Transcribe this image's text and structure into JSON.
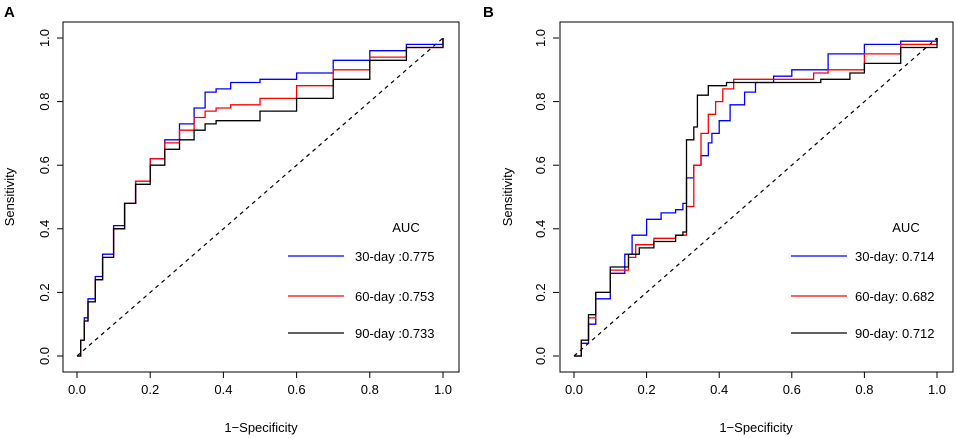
{
  "chart_data": [
    {
      "panel": "A",
      "type": "line",
      "xlabel": "1−Specificity",
      "ylabel": "Sensitivity",
      "xlim": [
        0,
        1
      ],
      "ylim": [
        0,
        1
      ],
      "xticks": [
        "0.0",
        "0.2",
        "0.4",
        "0.6",
        "0.8",
        "1.0"
      ],
      "yticks": [
        "0.0",
        "0.2",
        "0.4",
        "0.6",
        "0.8",
        "1.0"
      ],
      "legend_title": "AUC",
      "legend_position": "bottom-right",
      "reference_line": "diagonal-dashed",
      "series": [
        {
          "name": "30-day",
          "label": "30-day :0.775",
          "color": "#0000ff",
          "points": [
            [
              0,
              0
            ],
            [
              0.01,
              0.05
            ],
            [
              0.02,
              0.12
            ],
            [
              0.03,
              0.18
            ],
            [
              0.05,
              0.25
            ],
            [
              0.07,
              0.32
            ],
            [
              0.1,
              0.41
            ],
            [
              0.13,
              0.48
            ],
            [
              0.16,
              0.55
            ],
            [
              0.2,
              0.62
            ],
            [
              0.24,
              0.68
            ],
            [
              0.28,
              0.73
            ],
            [
              0.32,
              0.78
            ],
            [
              0.35,
              0.83
            ],
            [
              0.38,
              0.84
            ],
            [
              0.42,
              0.86
            ],
            [
              0.5,
              0.87
            ],
            [
              0.6,
              0.89
            ],
            [
              0.7,
              0.93
            ],
            [
              0.8,
              0.96
            ],
            [
              0.9,
              0.98
            ],
            [
              1,
              1
            ]
          ]
        },
        {
          "name": "60-day",
          "label": "60-day :0.753",
          "color": "#ff0000",
          "points": [
            [
              0,
              0
            ],
            [
              0.01,
              0.05
            ],
            [
              0.02,
              0.11
            ],
            [
              0.03,
              0.17
            ],
            [
              0.05,
              0.24
            ],
            [
              0.07,
              0.31
            ],
            [
              0.1,
              0.4
            ],
            [
              0.13,
              0.48
            ],
            [
              0.16,
              0.55
            ],
            [
              0.2,
              0.62
            ],
            [
              0.24,
              0.67
            ],
            [
              0.28,
              0.71
            ],
            [
              0.32,
              0.75
            ],
            [
              0.35,
              0.77
            ],
            [
              0.38,
              0.78
            ],
            [
              0.42,
              0.79
            ],
            [
              0.5,
              0.81
            ],
            [
              0.6,
              0.85
            ],
            [
              0.7,
              0.9
            ],
            [
              0.8,
              0.94
            ],
            [
              0.9,
              0.97
            ],
            [
              1,
              1
            ]
          ]
        },
        {
          "name": "90-day",
          "label": "90-day :0.733",
          "color": "#000000",
          "points": [
            [
              0,
              0
            ],
            [
              0.01,
              0.05
            ],
            [
              0.02,
              0.11
            ],
            [
              0.03,
              0.17
            ],
            [
              0.05,
              0.24
            ],
            [
              0.07,
              0.31
            ],
            [
              0.1,
              0.4
            ],
            [
              0.13,
              0.48
            ],
            [
              0.16,
              0.54
            ],
            [
              0.2,
              0.6
            ],
            [
              0.24,
              0.65
            ],
            [
              0.28,
              0.68
            ],
            [
              0.32,
              0.71
            ],
            [
              0.35,
              0.73
            ],
            [
              0.38,
              0.74
            ],
            [
              0.42,
              0.74
            ],
            [
              0.5,
              0.77
            ],
            [
              0.6,
              0.81
            ],
            [
              0.7,
              0.87
            ],
            [
              0.8,
              0.93
            ],
            [
              0.9,
              0.97
            ],
            [
              1,
              1
            ]
          ]
        }
      ]
    },
    {
      "panel": "B",
      "type": "line",
      "xlabel": "1−Specificity",
      "ylabel": "Sensitivity",
      "xlim": [
        0,
        1
      ],
      "ylim": [
        0,
        1
      ],
      "xticks": [
        "0.0",
        "0.2",
        "0.4",
        "0.6",
        "0.8",
        "1.0"
      ],
      "yticks": [
        "0.0",
        "0.2",
        "0.4",
        "0.6",
        "0.8",
        "1.0"
      ],
      "legend_title": "AUC",
      "legend_position": "bottom-right",
      "reference_line": "diagonal-dashed",
      "series": [
        {
          "name": "30-day",
          "label": "30-day:  0.714",
          "color": "#0000ff",
          "points": [
            [
              0,
              0
            ],
            [
              0.02,
              0.04
            ],
            [
              0.04,
              0.1
            ],
            [
              0.06,
              0.18
            ],
            [
              0.1,
              0.26
            ],
            [
              0.14,
              0.32
            ],
            [
              0.16,
              0.38
            ],
            [
              0.2,
              0.43
            ],
            [
              0.24,
              0.45
            ],
            [
              0.28,
              0.46
            ],
            [
              0.3,
              0.48
            ],
            [
              0.31,
              0.56
            ],
            [
              0.33,
              0.6
            ],
            [
              0.35,
              0.63
            ],
            [
              0.37,
              0.67
            ],
            [
              0.38,
              0.7
            ],
            [
              0.4,
              0.74
            ],
            [
              0.43,
              0.79
            ],
            [
              0.47,
              0.83
            ],
            [
              0.5,
              0.86
            ],
            [
              0.55,
              0.88
            ],
            [
              0.6,
              0.9
            ],
            [
              0.7,
              0.95
            ],
            [
              0.8,
              0.98
            ],
            [
              0.9,
              0.99
            ],
            [
              1,
              1
            ]
          ]
        },
        {
          "name": "60-day",
          "label": "60-day:  0.682",
          "color": "#ff0000",
          "points": [
            [
              0,
              0
            ],
            [
              0.02,
              0.05
            ],
            [
              0.04,
              0.12
            ],
            [
              0.06,
              0.2
            ],
            [
              0.1,
              0.27
            ],
            [
              0.15,
              0.31
            ],
            [
              0.17,
              0.35
            ],
            [
              0.22,
              0.37
            ],
            [
              0.28,
              0.38
            ],
            [
              0.3,
              0.38
            ],
            [
              0.31,
              0.47
            ],
            [
              0.33,
              0.6
            ],
            [
              0.35,
              0.7
            ],
            [
              0.37,
              0.76
            ],
            [
              0.39,
              0.8
            ],
            [
              0.41,
              0.84
            ],
            [
              0.44,
              0.87
            ],
            [
              0.5,
              0.87
            ],
            [
              0.6,
              0.87
            ],
            [
              0.66,
              0.89
            ],
            [
              0.7,
              0.9
            ],
            [
              0.8,
              0.95
            ],
            [
              0.9,
              0.98
            ],
            [
              1,
              1
            ]
          ]
        },
        {
          "name": "90-day",
          "label": "90-day:  0.712",
          "color": "#000000",
          "points": [
            [
              0,
              0
            ],
            [
              0.02,
              0.05
            ],
            [
              0.04,
              0.13
            ],
            [
              0.06,
              0.2
            ],
            [
              0.1,
              0.28
            ],
            [
              0.15,
              0.32
            ],
            [
              0.18,
              0.34
            ],
            [
              0.22,
              0.36
            ],
            [
              0.28,
              0.38
            ],
            [
              0.3,
              0.39
            ],
            [
              0.31,
              0.5
            ],
            [
              0.31,
              0.68
            ],
            [
              0.33,
              0.72
            ],
            [
              0.34,
              0.82
            ],
            [
              0.37,
              0.85
            ],
            [
              0.42,
              0.86
            ],
            [
              0.5,
              0.86
            ],
            [
              0.6,
              0.86
            ],
            [
              0.68,
              0.87
            ],
            [
              0.76,
              0.89
            ],
            [
              0.8,
              0.92
            ],
            [
              0.9,
              0.97
            ],
            [
              1,
              1
            ]
          ]
        }
      ]
    }
  ]
}
